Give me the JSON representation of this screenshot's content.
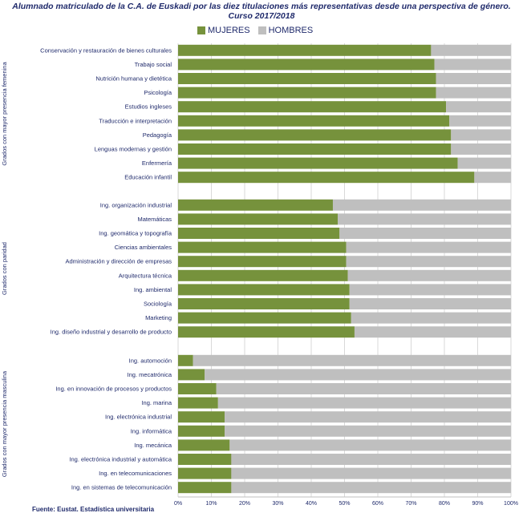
{
  "chart_data": {
    "type": "bar",
    "orientation": "horizontal",
    "stacked": "percent",
    "title": [
      "Alumnado matriculado de la C.A. de Euskadi por las diez titulaciones más representativas desde una perspectiva de género.",
      "Curso 2017/2018"
    ],
    "source": "Fuente: Eustat. Estadística universitaria",
    "legend": {
      "position": "top",
      "entries": [
        "MUJERES",
        "HOMBRES"
      ]
    },
    "colors": {
      "MUJERES": "#76923c",
      "HOMBRES": "#bfbfbf"
    },
    "xlim": [
      0,
      100
    ],
    "x_ticks": [
      "0%",
      "10%",
      "20%",
      "30%",
      "40%",
      "50%",
      "60%",
      "70%",
      "80%",
      "90%",
      "100%"
    ],
    "grid": true,
    "groups": [
      {
        "label": "Grados con mayor presencia femenina",
        "categories": [
          "Conservación y restauración de bienes culturales",
          "Trabajo social",
          "Nutrición humana y dietética",
          "Psicología",
          "Estudios ingleses",
          "Traducción e interpretación",
          "Pedagogía",
          "Lenguas modernas y gestión",
          "Enfermería",
          "Educación infantil"
        ],
        "mujeres": [
          76,
          77,
          77.5,
          77.5,
          80.5,
          81.5,
          82,
          82,
          84,
          89
        ],
        "hombres": [
          24,
          23,
          22.5,
          22.5,
          19.5,
          18.5,
          18,
          18,
          16,
          11
        ]
      },
      {
        "label": "Grados con paridad",
        "categories": [
          "Ing. organización industrial",
          "Matemáticas",
          "Ing. geomática y topografía",
          "Ciencias ambientales",
          "Administración y dirección de empresas",
          "Arquitectura técnica",
          "Ing. ambiental",
          "Sociología",
          "Marketing",
          "Ing. diseño industrial y desarrollo de producto"
        ],
        "mujeres": [
          46.5,
          48,
          48.5,
          50.5,
          50.5,
          51,
          51.5,
          51.5,
          52,
          53
        ],
        "hombres": [
          53.5,
          52,
          51.5,
          49.5,
          49.5,
          49,
          48.5,
          48.5,
          48,
          47
        ]
      },
      {
        "label": "Grados con mayor presencia masculina",
        "categories": [
          "Ing. automoción",
          "Ing. mecatrónica",
          "Ing. en innovación de procesos y productos",
          "Ing. marina",
          "Ing. electrónica industrial",
          "Ing. informática",
          "Ing. mecánica",
          "Ing. electrónica industrial y automática",
          "Ing. en telecomunicaciones",
          "Ing. en sistemas de telecomunicación"
        ],
        "mujeres": [
          4.5,
          8,
          11.5,
          12,
          14,
          14,
          15.5,
          16,
          16,
          16
        ],
        "hombres": [
          95.5,
          92,
          88.5,
          88,
          86,
          86,
          84.5,
          84,
          84,
          84
        ]
      }
    ]
  }
}
